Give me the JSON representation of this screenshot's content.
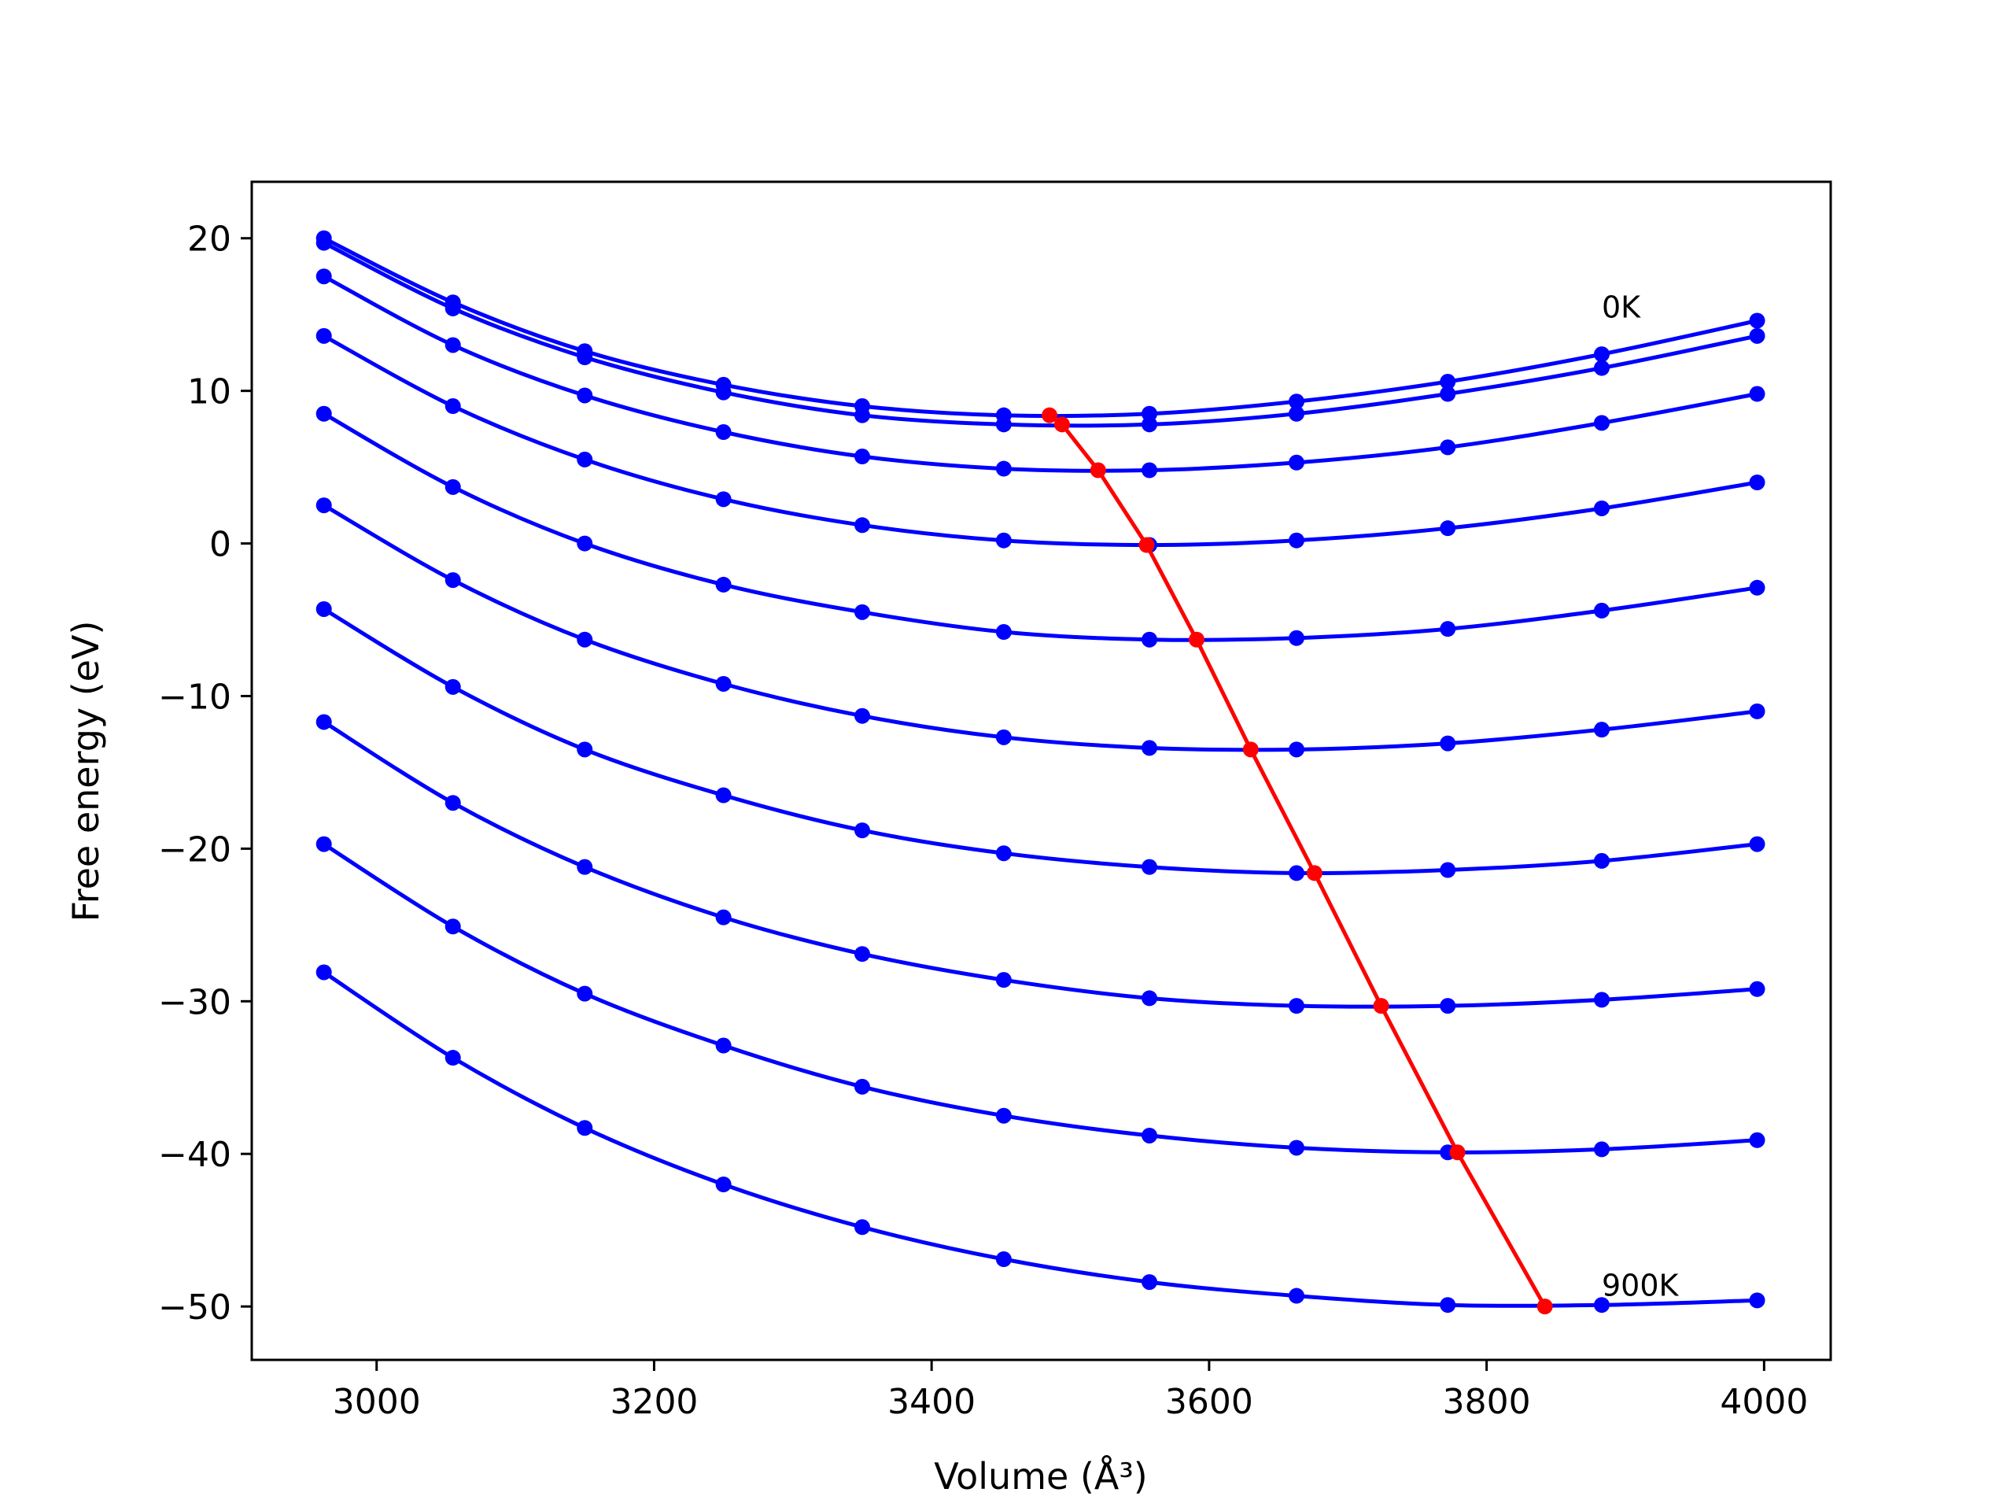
{
  "chart_data": {
    "type": "line",
    "title": "",
    "xlabel": "Volume (Å³)",
    "ylabel": "Free energy (eV)",
    "xlim": [
      2910,
      4048
    ],
    "ylim": [
      -53.5,
      23.7
    ],
    "xticks": [
      3000,
      3200,
      3400,
      3600,
      3800,
      4000
    ],
    "xtick_labels": [
      "3000",
      "3200",
      "3400",
      "3600",
      "3800",
      "4000"
    ],
    "yticks": [
      20,
      10,
      0,
      -10,
      -20,
      -30,
      -40,
      -50
    ],
    "ytick_labels": [
      "20",
      "10",
      "0",
      "−10",
      "−20",
      "−30",
      "−40",
      "−50"
    ],
    "grid": false,
    "legend": "none",
    "colors": {
      "curves": "#0000ff",
      "minimum": "#ff0000"
    },
    "x": [
      2962,
      3055,
      3150,
      3250,
      3350,
      3452,
      3557,
      3663,
      3772,
      3883,
      3995
    ],
    "series": [
      {
        "values": [
          20.0,
          15.8,
          12.6,
          10.4,
          9.0,
          8.4,
          8.5,
          9.3,
          10.6,
          12.4,
          14.6
        ]
      },
      {
        "values": [
          19.7,
          15.4,
          12.2,
          9.9,
          8.4,
          7.8,
          7.8,
          8.5,
          9.8,
          11.5,
          13.6
        ]
      },
      {
        "values": [
          17.5,
          13.0,
          9.7,
          7.3,
          5.7,
          4.9,
          4.8,
          5.3,
          6.3,
          7.9,
          9.8
        ]
      },
      {
        "values": [
          13.6,
          9.0,
          5.5,
          2.9,
          1.2,
          0.2,
          -0.1,
          0.2,
          1.0,
          2.3,
          4.0
        ]
      },
      {
        "values": [
          8.5,
          3.7,
          0.0,
          -2.7,
          -4.5,
          -5.8,
          -6.3,
          -6.2,
          -5.6,
          -4.4,
          -2.9
        ]
      },
      {
        "values": [
          2.5,
          -2.4,
          -6.3,
          -9.2,
          -11.3,
          -12.7,
          -13.4,
          -13.5,
          -13.1,
          -12.2,
          -11.0
        ]
      },
      {
        "values": [
          -4.3,
          -9.4,
          -13.5,
          -16.5,
          -18.8,
          -20.3,
          -21.2,
          -21.6,
          -21.4,
          -20.8,
          -19.7
        ]
      },
      {
        "values": [
          -11.7,
          -17.0,
          -21.2,
          -24.5,
          -26.9,
          -28.6,
          -29.8,
          -30.3,
          -30.3,
          -29.9,
          -29.2
        ]
      },
      {
        "values": [
          -19.7,
          -25.1,
          -29.5,
          -32.9,
          -35.6,
          -37.5,
          -38.8,
          -39.6,
          -39.9,
          -39.7,
          -39.1
        ]
      },
      {
        "values": [
          -28.1,
          -33.7,
          -38.3,
          -42.0,
          -44.8,
          -46.9,
          -48.4,
          -49.3,
          -49.9,
          -49.9,
          -49.6
        ]
      }
    ],
    "minimum_path": {
      "x": [
        3485,
        3494,
        3520,
        3555,
        3591,
        3630,
        3676,
        3724,
        3779,
        3842
      ],
      "y": [
        8.4,
        7.8,
        4.8,
        -0.1,
        -6.3,
        -13.5,
        -21.6,
        -30.3,
        -39.9,
        -50.0
      ]
    },
    "annotations": [
      {
        "text": "0K",
        "x": 3883,
        "y": 14.8
      },
      {
        "text": "900K",
        "x": 3883,
        "y": -49.3
      }
    ]
  }
}
